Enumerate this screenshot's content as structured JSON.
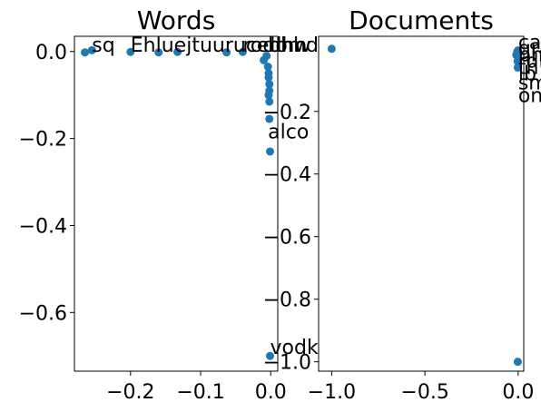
{
  "chart_data": [
    {
      "type": "scatter",
      "title": "Words",
      "xlim": [
        -0.28,
        0.01
      ],
      "ylim": [
        -0.735,
        0.035
      ],
      "xticks": [
        -0.2,
        -0.1,
        0.0
      ],
      "xtick_labels": [
        "−0.2",
        "−0.1",
        "0.0"
      ],
      "yticks": [
        0.0,
        -0.2,
        -0.4,
        -0.6
      ],
      "ytick_labels": [
        "0.0",
        "−0.2",
        "−0.4",
        "−0.6"
      ],
      "color": "#1f77b4",
      "points": [
        {
          "x": -0.265,
          "y": -0.002
        },
        {
          "x": -0.255,
          "y": 0.003
        },
        {
          "x": -0.2,
          "y": -0.001
        },
        {
          "x": -0.16,
          "y": -0.002
        },
        {
          "x": -0.133,
          "y": -0.001
        },
        {
          "x": -0.063,
          "y": -0.002
        },
        {
          "x": -0.04,
          "y": -0.001
        },
        {
          "x": -0.01,
          "y": -0.02
        },
        {
          "x": -0.006,
          "y": -0.01
        },
        {
          "x": -0.004,
          "y": -0.035
        },
        {
          "x": -0.003,
          "y": -0.05
        },
        {
          "x": -0.003,
          "y": -0.06
        },
        {
          "x": -0.002,
          "y": -0.075
        },
        {
          "x": -0.002,
          "y": -0.09
        },
        {
          "x": -0.003,
          "y": -0.1
        },
        {
          "x": -0.002,
          "y": -0.115
        },
        {
          "x": -0.002,
          "y": -0.155
        },
        {
          "x": -0.001,
          "y": -0.23
        },
        {
          "x": -0.001,
          "y": -0.7
        }
      ],
      "annotations": [
        {
          "x": -0.255,
          "y": 0.0,
          "text": "sq"
        },
        {
          "x": -0.2,
          "y": 0.0,
          "text": "Ehluejtuurucedhw"
        },
        {
          "x": -0.04,
          "y": 0.0,
          "text": "rodom"
        },
        {
          "x": -0.004,
          "y": 0.0,
          "text": "bhhd"
        },
        {
          "x": -0.004,
          "y": -0.2,
          "text": "alco"
        },
        {
          "x": -0.001,
          "y": -0.695,
          "text": "vodk"
        }
      ]
    },
    {
      "type": "scatter",
      "title": "Documents",
      "xlim": [
        -1.07,
        0.03
      ],
      "ylim": [
        -1.03,
        0.04
      ],
      "xticks": [
        -1.0,
        -0.5,
        0.0
      ],
      "xtick_labels": [
        "−1.0",
        "−0.5",
        "0.0"
      ],
      "yticks": [
        -0.2,
        -0.4,
        -0.6,
        -0.8,
        -1.0
      ],
      "ytick_labels": [
        "−0.2",
        "−0.4",
        "−0.6",
        "−0.8",
        "−1.0"
      ],
      "color": "#1f77b4",
      "points": [
        {
          "x": -1.0,
          "y": 0.0
        },
        {
          "x": -0.01,
          "y": -0.02
        },
        {
          "x": -0.005,
          "y": -0.01
        },
        {
          "x": -0.002,
          "y": -0.025
        },
        {
          "x": -0.003,
          "y": -0.04
        },
        {
          "x": -0.002,
          "y": -0.06
        },
        {
          "x": -0.004,
          "y": -0.015
        },
        {
          "x": -0.001,
          "y": -0.005
        },
        {
          "x": -0.002,
          "y": -1.0
        }
      ],
      "annotations": [
        {
          "x": -0.0,
          "y": 0.0,
          "text": "carcrucent"
        },
        {
          "x": -0.0,
          "y": -0.02,
          "text": "grapes"
        },
        {
          "x": -0.0,
          "y": -0.04,
          "text": "pnbr"
        },
        {
          "x": -0.0,
          "y": -0.06,
          "text": "rdi"
        },
        {
          "x": -0.0,
          "y": -0.08,
          "text": "th"
        },
        {
          "x": -0.0,
          "y": -0.1,
          "text": "lb"
        },
        {
          "x": -0.0,
          "y": -0.13,
          "text": "sml"
        },
        {
          "x": -0.0,
          "y": -0.17,
          "text": "onnn"
        }
      ]
    }
  ]
}
